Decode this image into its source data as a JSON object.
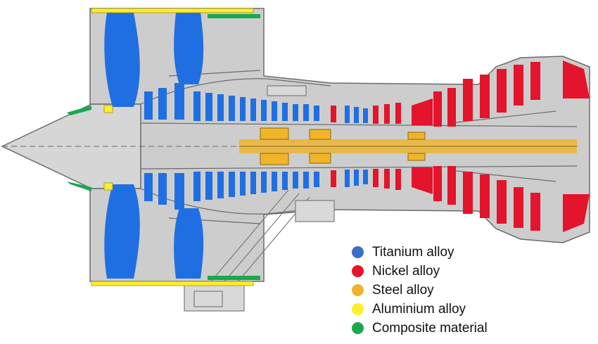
{
  "colors": {
    "casing": "#cdcdcd",
    "outline": "#6b6b6b",
    "shaft": "#e9b84a",
    "titanium": "#1f6fe3",
    "nickel": "#e3142b",
    "steel": "#f0b429",
    "aluminium": "#ffef2a",
    "composite": "#1aa84f"
  },
  "legend": {
    "items": [
      {
        "label": "Titanium alloy",
        "color": "#3d6cc9",
        "material": "titanium"
      },
      {
        "label": "Nickel alloy",
        "color": "#e3142b",
        "material": "nickel"
      },
      {
        "label": "Steel alloy",
        "color": "#f0b429",
        "material": "steel"
      },
      {
        "label": "Aluminium alloy",
        "color": "#ffef2a",
        "material": "aluminium"
      },
      {
        "label": "Composite material",
        "color": "#1aa84f",
        "material": "composite"
      }
    ]
  }
}
